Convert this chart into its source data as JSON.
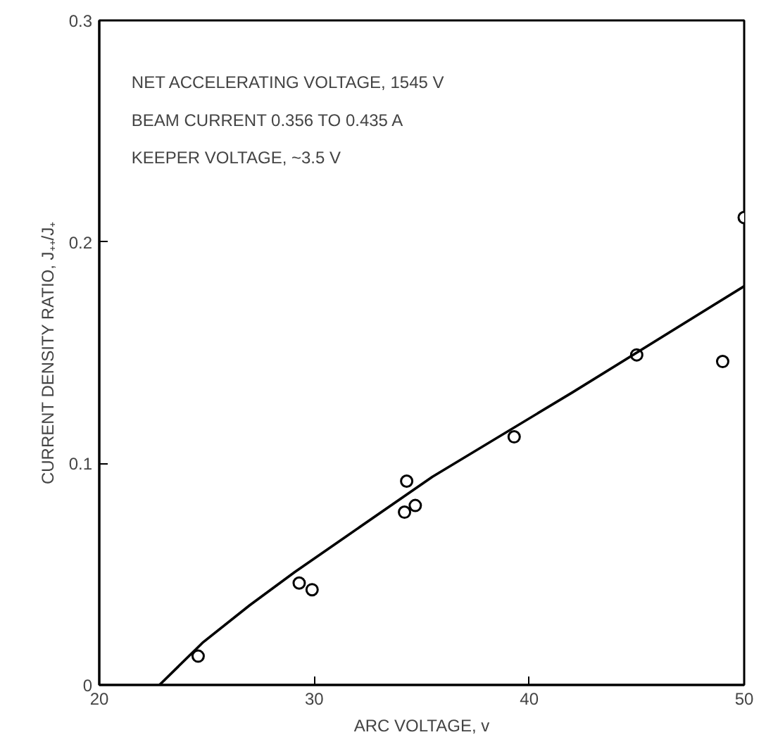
{
  "chart_data": {
    "type": "scatter",
    "xlabel": "ARC VOLTAGE, v",
    "ylabel": "CURRENT DENSITY RATIO, J₊₊/J₊",
    "annotations": [
      "NET ACCELERATING VOLTAGE, 1545 V",
      "BEAM CURRENT 0.356 TO 0.435 A",
      "KEEPER VOLTAGE, ~3.5 V"
    ],
    "xlim": [
      20,
      50
    ],
    "ylim": [
      0,
      0.3
    ],
    "xticks": [
      20,
      30,
      40,
      50
    ],
    "yticks": [
      0,
      {
        "value": 0.1,
        "label": "0.1"
      },
      {
        "value": 0.2,
        "label": "0.2"
      },
      {
        "value": 0.3,
        "label": "0.3"
      }
    ],
    "grid": false,
    "series": [
      {
        "marker": "circle",
        "color": "#000000",
        "x": [
          24.6,
          29.3,
          29.9,
          34.2,
          34.3,
          34.7,
          39.3,
          45.0,
          49.0,
          50.0
        ],
        "values": [
          0.013,
          0.046,
          0.043,
          0.078,
          0.092,
          0.081,
          0.112,
          0.149,
          0.146,
          0.211
        ]
      },
      {
        "type": "line",
        "color": "#000000",
        "line_style": "solid",
        "x": [
          22.8,
          24.8,
          27,
          29.1,
          35.5,
          42,
          50
        ],
        "values": [
          0,
          0.019,
          0.036,
          0.051,
          0.094,
          0.132,
          0.18
        ]
      }
    ]
  }
}
